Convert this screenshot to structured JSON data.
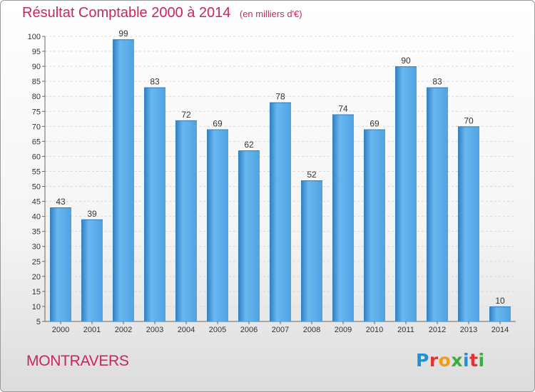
{
  "header": {
    "title": "Résultat Comptable 2000 à 2014",
    "unit": "(en milliers d'€)"
  },
  "footer": {
    "commune": "MONTRAVERS",
    "logo_letters": [
      {
        "ch": "P",
        "color": "#1f8fd6"
      },
      {
        "ch": "r",
        "color": "#e8312f"
      },
      {
        "ch": "o",
        "color": "#f39c12"
      },
      {
        "ch": "x",
        "color": "#3cae3f"
      },
      {
        "ch": "i",
        "color": "#1f8fd6"
      },
      {
        "ch": "t",
        "color": "#e8312f"
      },
      {
        "ch": "i",
        "color": "#3cae3f"
      }
    ]
  },
  "colors": {
    "bar": "#4fa3e3",
    "bar_light": "#6ab7ef",
    "bar_dark": "#2f7fc4",
    "title": "#c8275a"
  },
  "chart_data": {
    "type": "bar",
    "title": "Résultat Comptable 2000 à 2014",
    "subtitle": "(en milliers d'€)",
    "xlabel": "",
    "ylabel": "",
    "categories": [
      "2000",
      "2001",
      "2002",
      "2003",
      "2004",
      "2005",
      "2006",
      "2007",
      "2008",
      "2009",
      "2010",
      "2011",
      "2012",
      "2013",
      "2014"
    ],
    "values": [
      43,
      39,
      99,
      83,
      72,
      69,
      62,
      78,
      52,
      74,
      69,
      90,
      83,
      70,
      10
    ],
    "ylim": [
      5,
      100
    ],
    "yticks": [
      5,
      10,
      15,
      20,
      25,
      30,
      35,
      40,
      45,
      50,
      55,
      60,
      65,
      70,
      75,
      80,
      85,
      90,
      95,
      100
    ],
    "grid": true,
    "data_labels": true
  }
}
